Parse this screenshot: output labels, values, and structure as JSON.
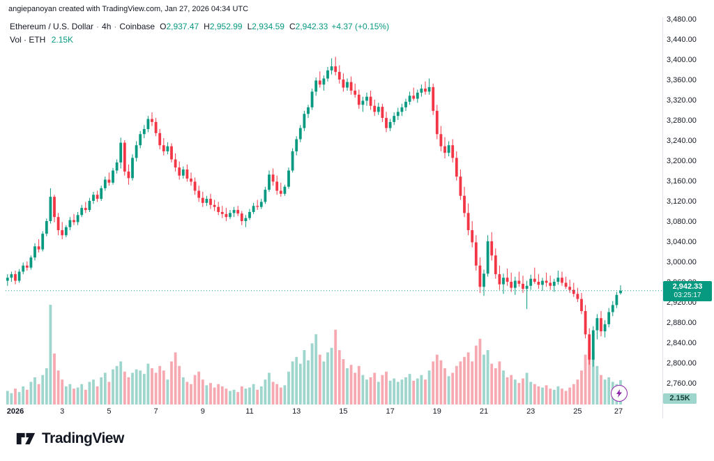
{
  "attribution": "angiepanoyan created with TradingView.com, Jan 27, 2026 04:34 UTC",
  "legend": {
    "symbol": "Ethereum / U.S. Dollar",
    "separator": "·",
    "interval": "4h",
    "exchange": "Coinbase",
    "open_label": "O",
    "open": "2,937.47",
    "high_label": "H",
    "high": "2,952.99",
    "low_label": "L",
    "low": "2,934.59",
    "close_label": "C",
    "close": "2,942.33",
    "change": "+4.37 (+0.15%)",
    "volume_label": "Vol · ETH",
    "volume_value": "2.15K"
  },
  "last_price_badge": {
    "price": "2,942.33",
    "countdown": "03:25:17"
  },
  "volume_badge": "2.15K",
  "logo": {
    "text": "TradingView"
  },
  "colors": {
    "up": "#089981",
    "down": "#f23645",
    "vol_up": "#9ed6cd",
    "vol_down": "#f6a9b1",
    "axis_text": "#131722",
    "axis_line": "#e0e3eb",
    "price_line": "#089981",
    "badge_bg": "#089981",
    "boost_purple": "#8e24aa"
  },
  "y_axis": {
    "max": 3480,
    "min": 2760,
    "step": 40,
    "labels": [
      "3,480.00",
      "3,440.00",
      "3,400.00",
      "3,360.00",
      "3,320.00",
      "3,280.00",
      "3,240.00",
      "3,200.00",
      "3,160.00",
      "3,120.00",
      "3,080.00",
      "3,040.00",
      "3,000.00",
      "2,960.00",
      "2,920.00",
      "2,880.00",
      "2,840.00",
      "2,800.00",
      "2,760.00"
    ]
  },
  "x_axis": {
    "labels": [
      {
        "text": "2026",
        "day": 1
      },
      {
        "text": "3",
        "day": 3
      },
      {
        "text": "5",
        "day": 5
      },
      {
        "text": "7",
        "day": 7
      },
      {
        "text": "9",
        "day": 9
      },
      {
        "text": "11",
        "day": 11
      },
      {
        "text": "13",
        "day": 13
      },
      {
        "text": "15",
        "day": 15
      },
      {
        "text": "17",
        "day": 17
      },
      {
        "text": "19",
        "day": 19
      },
      {
        "text": "21",
        "day": 21
      },
      {
        "text": "23",
        "day": 23
      },
      {
        "text": "25",
        "day": 25
      },
      {
        "text": "27",
        "day": 27
      }
    ]
  },
  "chart_data": {
    "type": "candlestick",
    "title": "Ethereum / U.S. Dollar · 4h · Coinbase",
    "x_unit": "4-hour candles, Jan 1 - Jan 27, 2026",
    "price_range": [
      2760,
      3480
    ],
    "current_price": 2942.33,
    "columns": [
      "open",
      "high",
      "low",
      "close",
      "volume_kETH"
    ],
    "volume_unit": "K ETH",
    "candles": [
      [
        2962,
        2975,
        2952,
        2968,
        1.2
      ],
      [
        2968,
        2980,
        2960,
        2975,
        1.0
      ],
      [
        2975,
        2982,
        2955,
        2962,
        1.4
      ],
      [
        2962,
        2985,
        2958,
        2980,
        1.1
      ],
      [
        2980,
        2998,
        2975,
        2992,
        1.6
      ],
      [
        2992,
        3000,
        2982,
        2988,
        1.3
      ],
      [
        2988,
        3012,
        2984,
        3008,
        2.0
      ],
      [
        3008,
        3036,
        3002,
        3030,
        2.4
      ],
      [
        3030,
        3044,
        3018,
        3024,
        1.8
      ],
      [
        3024,
        3060,
        3020,
        3055,
        2.6
      ],
      [
        3055,
        3085,
        3050,
        3080,
        3.2
      ],
      [
        3080,
        3145,
        3075,
        3128,
        8.8
      ],
      [
        3128,
        3132,
        3078,
        3088,
        4.5
      ],
      [
        3088,
        3096,
        3052,
        3062,
        3.0
      ],
      [
        3062,
        3078,
        3044,
        3052,
        2.2
      ],
      [
        3052,
        3072,
        3048,
        3068,
        1.6
      ],
      [
        3068,
        3088,
        3062,
        3082,
        1.8
      ],
      [
        3082,
        3094,
        3072,
        3078,
        1.4
      ],
      [
        3078,
        3098,
        3072,
        3092,
        1.5
      ],
      [
        3092,
        3112,
        3088,
        3106,
        1.8
      ],
      [
        3106,
        3118,
        3096,
        3102,
        1.3
      ],
      [
        3102,
        3126,
        3098,
        3120,
        2.0
      ],
      [
        3120,
        3138,
        3114,
        3132,
        2.2
      ],
      [
        3132,
        3140,
        3118,
        3124,
        1.6
      ],
      [
        3124,
        3150,
        3120,
        3145,
        2.4
      ],
      [
        3145,
        3168,
        3140,
        3162,
        2.8
      ],
      [
        3162,
        3176,
        3150,
        3156,
        2.0
      ],
      [
        3156,
        3185,
        3152,
        3180,
        3.1
      ],
      [
        3180,
        3202,
        3174,
        3196,
        3.4
      ],
      [
        3196,
        3245,
        3184,
        3235,
        3.8
      ],
      [
        3235,
        3240,
        3170,
        3178,
        2.9
      ],
      [
        3178,
        3192,
        3152,
        3165,
        2.4
      ],
      [
        3165,
        3212,
        3160,
        3205,
        2.8
      ],
      [
        3205,
        3238,
        3198,
        3230,
        3.1
      ],
      [
        3230,
        3258,
        3224,
        3252,
        3.0
      ],
      [
        3252,
        3270,
        3244,
        3262,
        2.7
      ],
      [
        3262,
        3288,
        3256,
        3282,
        3.6
      ],
      [
        3282,
        3295,
        3268,
        3276,
        3.2
      ],
      [
        3276,
        3284,
        3248,
        3254,
        2.8
      ],
      [
        3254,
        3262,
        3222,
        3230,
        3.4
      ],
      [
        3230,
        3244,
        3210,
        3218,
        3.0
      ],
      [
        3218,
        3236,
        3212,
        3228,
        2.2
      ],
      [
        3228,
        3234,
        3196,
        3202,
        3.8
      ],
      [
        3202,
        3214,
        3178,
        3186,
        4.6
      ],
      [
        3186,
        3198,
        3162,
        3170,
        3.4
      ],
      [
        3170,
        3188,
        3164,
        3182,
        2.4
      ],
      [
        3182,
        3192,
        3158,
        3164,
        2.0
      ],
      [
        3164,
        3176,
        3150,
        3158,
        1.8
      ],
      [
        3158,
        3166,
        3132,
        3140,
        2.6
      ],
      [
        3140,
        3150,
        3118,
        3126,
        2.9
      ],
      [
        3126,
        3138,
        3108,
        3116,
        2.2
      ],
      [
        3116,
        3130,
        3110,
        3124,
        1.7
      ],
      [
        3124,
        3134,
        3104,
        3112,
        1.9
      ],
      [
        3112,
        3122,
        3100,
        3108,
        1.5
      ],
      [
        3108,
        3118,
        3092,
        3098,
        1.8
      ],
      [
        3098,
        3110,
        3086,
        3094,
        1.6
      ],
      [
        3094,
        3106,
        3080,
        3088,
        1.4
      ],
      [
        3088,
        3102,
        3084,
        3096,
        1.2
      ],
      [
        3096,
        3108,
        3088,
        3102,
        1.3
      ],
      [
        3102,
        3110,
        3090,
        3095,
        1.1
      ],
      [
        3095,
        3100,
        3072,
        3080,
        1.6
      ],
      [
        3080,
        3092,
        3068,
        3086,
        1.4
      ],
      [
        3086,
        3104,
        3082,
        3098,
        1.5
      ],
      [
        3098,
        3116,
        3094,
        3110,
        1.8
      ],
      [
        3110,
        3122,
        3102,
        3108,
        1.3
      ],
      [
        3108,
        3124,
        3104,
        3118,
        1.6
      ],
      [
        3118,
        3148,
        3114,
        3142,
        2.2
      ],
      [
        3142,
        3180,
        3138,
        3172,
        2.8
      ],
      [
        3172,
        3184,
        3150,
        3158,
        2.0
      ],
      [
        3158,
        3170,
        3132,
        3140,
        1.8
      ],
      [
        3140,
        3156,
        3128,
        3134,
        1.5
      ],
      [
        3134,
        3152,
        3130,
        3148,
        1.7
      ],
      [
        3148,
        3186,
        3144,
        3180,
        2.9
      ],
      [
        3180,
        3224,
        3176,
        3218,
        3.8
      ],
      [
        3218,
        3248,
        3210,
        3242,
        4.2
      ],
      [
        3242,
        3270,
        3236,
        3264,
        3.6
      ],
      [
        3264,
        3298,
        3258,
        3292,
        4.8
      ],
      [
        3292,
        3310,
        3284,
        3305,
        3.9
      ],
      [
        3305,
        3342,
        3300,
        3336,
        5.4
      ],
      [
        3336,
        3364,
        3328,
        3358,
        6.2
      ],
      [
        3358,
        3376,
        3344,
        3350,
        4.4
      ],
      [
        3350,
        3368,
        3338,
        3362,
        3.8
      ],
      [
        3362,
        3385,
        3356,
        3378,
        4.6
      ],
      [
        3378,
        3402,
        3370,
        3386,
        5.0
      ],
      [
        3386,
        3405,
        3368,
        3375,
        6.6
      ],
      [
        3375,
        3388,
        3352,
        3360,
        4.8
      ],
      [
        3360,
        3372,
        3336,
        3344,
        4.0
      ],
      [
        3344,
        3362,
        3338,
        3355,
        3.2
      ],
      [
        3355,
        3366,
        3330,
        3338,
        3.5
      ],
      [
        3338,
        3352,
        3324,
        3330,
        2.8
      ],
      [
        3330,
        3340,
        3302,
        3310,
        3.4
      ],
      [
        3310,
        3326,
        3296,
        3318,
        2.6
      ],
      [
        3318,
        3334,
        3308,
        3326,
        2.2
      ],
      [
        3326,
        3338,
        3300,
        3308,
        2.4
      ],
      [
        3308,
        3320,
        3288,
        3296,
        2.8
      ],
      [
        3296,
        3314,
        3290,
        3306,
        2.0
      ],
      [
        3306,
        3312,
        3276,
        3284,
        2.6
      ],
      [
        3284,
        3296,
        3256,
        3264,
        2.9
      ],
      [
        3264,
        3282,
        3258,
        3276,
        2.1
      ],
      [
        3276,
        3295,
        3270,
        3288,
        2.3
      ],
      [
        3288,
        3304,
        3280,
        3296,
        2.0
      ],
      [
        3296,
        3312,
        3288,
        3305,
        2.2
      ],
      [
        3305,
        3322,
        3298,
        3316,
        2.4
      ],
      [
        3316,
        3336,
        3310,
        3328,
        2.7
      ],
      [
        3328,
        3344,
        3318,
        3322,
        2.1
      ],
      [
        3322,
        3340,
        3314,
        3334,
        2.3
      ],
      [
        3334,
        3350,
        3326,
        3342,
        2.6
      ],
      [
        3342,
        3356,
        3330,
        3336,
        2.2
      ],
      [
        3336,
        3362,
        3330,
        3345,
        3.0
      ],
      [
        3345,
        3352,
        3290,
        3298,
        3.8
      ],
      [
        3298,
        3310,
        3242,
        3252,
        4.4
      ],
      [
        3252,
        3268,
        3218,
        3228,
        3.9
      ],
      [
        3228,
        3246,
        3204,
        3215,
        3.2
      ],
      [
        3215,
        3238,
        3208,
        3230,
        2.5
      ],
      [
        3230,
        3242,
        3196,
        3205,
        2.8
      ],
      [
        3205,
        3218,
        3160,
        3168,
        3.4
      ],
      [
        3168,
        3182,
        3122,
        3130,
        3.8
      ],
      [
        3130,
        3148,
        3088,
        3096,
        4.2
      ],
      [
        3096,
        3115,
        3052,
        3062,
        4.6
      ],
      [
        3062,
        3080,
        3028,
        3038,
        3.8
      ],
      [
        3038,
        3052,
        2982,
        2992,
        5.2
      ],
      [
        2992,
        3008,
        2938,
        2950,
        5.8
      ],
      [
        2950,
        2984,
        2932,
        2976,
        4.4
      ],
      [
        2976,
        3052,
        2970,
        3040,
        4.8
      ],
      [
        3040,
        3058,
        3002,
        3012,
        3.6
      ],
      [
        3012,
        3026,
        2966,
        2975,
        3.2
      ],
      [
        2975,
        2992,
        2944,
        2955,
        3.8
      ],
      [
        2955,
        2976,
        2936,
        2968,
        3.0
      ],
      [
        2968,
        2986,
        2952,
        2960,
        2.4
      ],
      [
        2960,
        2978,
        2940,
        2948,
        2.6
      ],
      [
        2948,
        2970,
        2934,
        2962,
        2.2
      ],
      [
        2962,
        2980,
        2950,
        2956,
        1.9
      ],
      [
        2956,
        2972,
        2938,
        2946,
        2.3
      ],
      [
        2946,
        2962,
        2906,
        2952,
        2.8
      ],
      [
        2952,
        2974,
        2944,
        2966,
        2.0
      ],
      [
        2966,
        2988,
        2956,
        2960,
        1.8
      ],
      [
        2960,
        2975,
        2946,
        2954,
        1.6
      ],
      [
        2954,
        2968,
        2942,
        2962,
        1.5
      ],
      [
        2962,
        2978,
        2950,
        2958,
        1.7
      ],
      [
        2958,
        2972,
        2944,
        2952,
        1.4
      ],
      [
        2952,
        2966,
        2940,
        2960,
        1.3
      ],
      [
        2960,
        2982,
        2954,
        2968,
        1.6
      ],
      [
        2968,
        2980,
        2952,
        2958,
        1.4
      ],
      [
        2958,
        2970,
        2946,
        2950,
        1.2
      ],
      [
        2950,
        2964,
        2938,
        2944,
        1.5
      ],
      [
        2944,
        2958,
        2930,
        2936,
        1.8
      ],
      [
        2936,
        2948,
        2920,
        2926,
        2.2
      ],
      [
        2926,
        2938,
        2896,
        2902,
        3.0
      ],
      [
        2902,
        2914,
        2848,
        2856,
        4.4
      ],
      [
        2856,
        2868,
        2796,
        2806,
        5.0
      ],
      [
        2806,
        2872,
        2792,
        2864,
        4.6
      ],
      [
        2864,
        2896,
        2846,
        2888,
        3.4
      ],
      [
        2888,
        2902,
        2852,
        2862,
        2.6
      ],
      [
        2862,
        2884,
        2850,
        2876,
        2.2
      ],
      [
        2876,
        2908,
        2870,
        2900,
        2.4
      ],
      [
        2900,
        2922,
        2892,
        2914,
        2.0
      ],
      [
        2914,
        2940,
        2908,
        2934,
        1.8
      ],
      [
        2937.47,
        2952.99,
        2934.59,
        2942.33,
        2.15
      ]
    ]
  }
}
